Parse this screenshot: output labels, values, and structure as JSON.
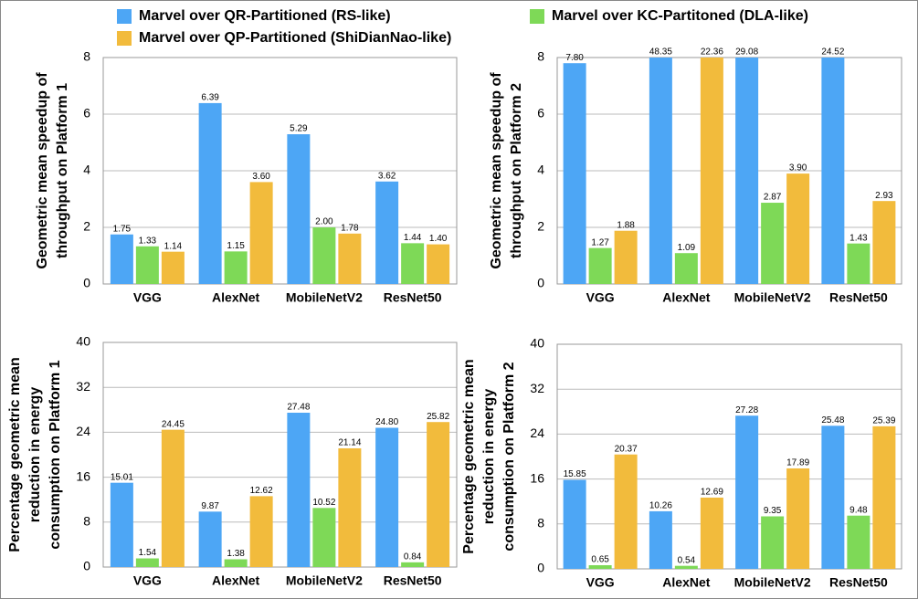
{
  "chart_data": [
    {
      "type": "bar",
      "ylabel": [
        "Geometric mean speedup of",
        "throughput on Platform 1"
      ],
      "categories": [
        "VGG",
        "AlexNet",
        "MobileNetV2",
        "ResNet50"
      ],
      "ylim": [
        0,
        8
      ],
      "yticks": [
        0,
        2,
        4,
        6,
        8
      ],
      "grid": true,
      "series": [
        {
          "name": "Marvel over QR-Partitioned (RS-like)",
          "color": "#4da6f5",
          "values": [
            1.75,
            6.39,
            5.29,
            3.62
          ],
          "value_labels": [
            "1.75",
            "6.39",
            "5.29",
            "3.62"
          ]
        },
        {
          "name": "Marvel over KC-Partitoned (DLA-like)",
          "color": "#7ed957",
          "values": [
            1.33,
            1.15,
            2.0,
            1.44
          ],
          "value_labels": [
            "1.33",
            "1.15",
            "2.00",
            "1.44"
          ]
        },
        {
          "name": "Marvel over QP-Partitioned (ShiDianNao-like)",
          "color": "#f2bb3c",
          "values": [
            1.14,
            3.6,
            1.78,
            1.4
          ],
          "value_labels": [
            "1.14",
            "3.60",
            "1.78",
            "1.40"
          ]
        }
      ]
    },
    {
      "type": "bar",
      "ylabel": [
        "Geometric mean speedup of",
        "throughput on Platform 2"
      ],
      "categories": [
        "VGG",
        "AlexNet",
        "MobileNetV2",
        "ResNet50"
      ],
      "ylim": [
        0,
        8
      ],
      "yticks": [
        0,
        2,
        4,
        6,
        8
      ],
      "grid": true,
      "series": [
        {
          "name": "Marvel over QR-Partitioned (RS-like)",
          "color": "#4da6f5",
          "values": [
            7.8,
            48.35,
            29.08,
            24.52
          ],
          "value_labels": [
            "7.80",
            "48.35",
            "29.08",
            "24.52"
          ]
        },
        {
          "name": "Marvel over KC-Partitoned (DLA-like)",
          "color": "#7ed957",
          "values": [
            1.27,
            1.09,
            2.87,
            1.43
          ],
          "value_labels": [
            "1.27",
            "1.09",
            "2.87",
            "1.43"
          ]
        },
        {
          "name": "Marvel over QP-Partitioned (ShiDianNao-like)",
          "color": "#f2bb3c",
          "values": [
            1.88,
            22.36,
            3.9,
            2.93
          ],
          "value_labels": [
            "1.88",
            "22.36",
            "3.90",
            "2.93"
          ]
        }
      ]
    },
    {
      "type": "bar",
      "ylabel": [
        "Percentage geometric mean",
        "reduction in energy",
        "consumption on Platform 1"
      ],
      "categories": [
        "VGG",
        "AlexNet",
        "MobileNetV2",
        "ResNet50"
      ],
      "ylim": [
        0,
        40
      ],
      "yticks": [
        0,
        8,
        16,
        24,
        32,
        40
      ],
      "grid": true,
      "series": [
        {
          "name": "Marvel over QR-Partitioned (RS-like)",
          "color": "#4da6f5",
          "values": [
            15.01,
            9.87,
            27.48,
            24.8
          ],
          "value_labels": [
            "15.01",
            "9.87",
            "27.48",
            "24.80"
          ]
        },
        {
          "name": "Marvel over KC-Partitoned (DLA-like)",
          "color": "#7ed957",
          "values": [
            1.54,
            1.38,
            10.52,
            0.84
          ],
          "value_labels": [
            "1.54",
            "1.38",
            "10.52",
            "0.84"
          ]
        },
        {
          "name": "Marvel over QP-Partitioned (ShiDianNao-like)",
          "color": "#f2bb3c",
          "values": [
            24.45,
            12.62,
            21.14,
            25.82
          ],
          "value_labels": [
            "24.45",
            "12.62",
            "21.14",
            "25.82"
          ]
        }
      ]
    },
    {
      "type": "bar",
      "ylabel": [
        "Percentage geometric mean",
        "reduction in energy",
        "consumption on Platform 2"
      ],
      "categories": [
        "VGG",
        "AlexNet",
        "MobileNetV2",
        "ResNet50"
      ],
      "ylim": [
        0,
        40
      ],
      "yticks": [
        0,
        8,
        16,
        24,
        32,
        40
      ],
      "grid": true,
      "series": [
        {
          "name": "Marvel over QR-Partitioned (RS-like)",
          "color": "#4da6f5",
          "values": [
            15.85,
            10.26,
            27.28,
            25.48
          ],
          "value_labels": [
            "15.85",
            "10.26",
            "27.28",
            "25.48"
          ]
        },
        {
          "name": "Marvel over KC-Partitoned (DLA-like)",
          "color": "#7ed957",
          "values": [
            0.65,
            0.54,
            9.35,
            9.48
          ],
          "value_labels": [
            "0.65",
            "0.54",
            "9.35",
            "9.48"
          ]
        },
        {
          "name": "Marvel over QP-Partitioned (ShiDianNao-like)",
          "color": "#f2bb3c",
          "values": [
            20.37,
            12.69,
            17.89,
            25.39
          ],
          "value_labels": [
            "20.37",
            "12.69",
            "17.89",
            "25.39"
          ]
        }
      ]
    }
  ]
}
